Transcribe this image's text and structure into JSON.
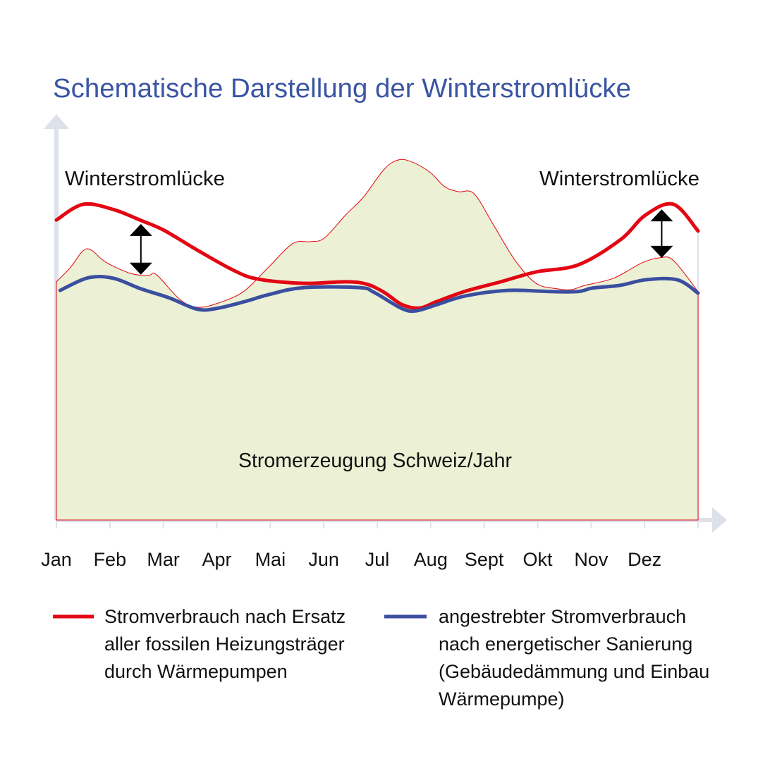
{
  "chart_data": {
    "type": "area",
    "title": "Schematische Darstellung der Winterstromlücke",
    "categories": [
      "Jan",
      "Feb",
      "Mar",
      "Apr",
      "Mai",
      "Jun",
      "Jul",
      "Aug",
      "Sept",
      "Okt",
      "Nov",
      "Dez"
    ],
    "xlabel": "",
    "ylabel": "",
    "xlim": [
      0,
      12
    ],
    "ylim": [
      0,
      100
    ],
    "grid": false,
    "legend_position": "bottom",
    "area": {
      "label": "Stromerzeugung Schweiz/Jahr",
      "fill": "#ecf0d4",
      "stroke": "#e30613",
      "points": [
        [
          0,
          60.6
        ],
        [
          0.26,
          64.2
        ],
        [
          0.5,
          68.5
        ],
        [
          0.66,
          68.6
        ],
        [
          0.92,
          65.6
        ],
        [
          1.39,
          62.7
        ],
        [
          1.72,
          62.2
        ],
        [
          1.87,
          62.4
        ],
        [
          2.31,
          56.1
        ],
        [
          2.64,
          54.1
        ],
        [
          3.03,
          55.2
        ],
        [
          3.5,
          58.1
        ],
        [
          3.96,
          64.2
        ],
        [
          4.42,
          70.3
        ],
        [
          4.75,
          70.8
        ],
        [
          5.01,
          71.7
        ],
        [
          5.41,
          77.6
        ],
        [
          5.74,
          82.1
        ],
        [
          6.13,
          89.2
        ],
        [
          6.4,
          91.6
        ],
        [
          6.66,
          91.0
        ],
        [
          6.99,
          88.4
        ],
        [
          7.26,
          84.8
        ],
        [
          7.52,
          83.5
        ],
        [
          7.81,
          83.0
        ],
        [
          8.18,
          74.9
        ],
        [
          8.58,
          66.0
        ],
        [
          8.97,
          60.2
        ],
        [
          9.37,
          58.8
        ],
        [
          9.63,
          58.6
        ],
        [
          9.89,
          59.7
        ],
        [
          10.42,
          61.5
        ],
        [
          10.95,
          65.4
        ],
        [
          11.28,
          66.7
        ],
        [
          11.54,
          66.0
        ],
        [
          12,
          58.1
        ]
      ]
    },
    "series": [
      {
        "name": "Stromverbrauch nach Ersatz aller fossilen Heizungsträger durch Wärmepumpen",
        "color": "#e30613",
        "points": [
          [
            0,
            76.3
          ],
          [
            0.5,
            80.3
          ],
          [
            1.06,
            79.0
          ],
          [
            1.58,
            76.2
          ],
          [
            2.01,
            73.7
          ],
          [
            2.64,
            68.6
          ],
          [
            3.3,
            63.6
          ],
          [
            3.76,
            61.3
          ],
          [
            4.62,
            60.2
          ],
          [
            5.41,
            60.6
          ],
          [
            5.8,
            60.0
          ],
          [
            6.13,
            57.9
          ],
          [
            6.46,
            54.8
          ],
          [
            6.79,
            53.9
          ],
          [
            7.12,
            55.6
          ],
          [
            7.65,
            58.2
          ],
          [
            8.31,
            60.6
          ],
          [
            8.97,
            63.1
          ],
          [
            9.76,
            64.9
          ],
          [
            10.55,
            71.3
          ],
          [
            11.02,
            77.6
          ],
          [
            11.54,
            80.3
          ],
          [
            12,
            73.5
          ]
        ]
      },
      {
        "name": "angestrebter Stromverbrauch nach energetischer Sanierung (Gebäudedämmung und Einbau Wärmepumpe)",
        "color": "#3a4fa0",
        "points": [
          [
            0.07,
            58.4
          ],
          [
            0.59,
            61.6
          ],
          [
            1.06,
            61.5
          ],
          [
            1.58,
            58.8
          ],
          [
            2.11,
            56.5
          ],
          [
            2.64,
            53.6
          ],
          [
            3.03,
            53.9
          ],
          [
            3.56,
            55.7
          ],
          [
            3.96,
            57.3
          ],
          [
            4.62,
            59.1
          ],
          [
            5.67,
            59.1
          ],
          [
            5.94,
            57.9
          ],
          [
            6.46,
            53.8
          ],
          [
            6.73,
            53.2
          ],
          [
            7.12,
            54.8
          ],
          [
            7.65,
            57.0
          ],
          [
            8.44,
            58.4
          ],
          [
            9.23,
            58.1
          ],
          [
            9.76,
            58.1
          ],
          [
            10.03,
            59.0
          ],
          [
            10.55,
            59.7
          ],
          [
            11.02,
            61.1
          ],
          [
            11.61,
            61.1
          ],
          [
            12,
            57.7
          ]
        ]
      }
    ],
    "annotations": [
      {
        "text": "Winterstromlücke",
        "arrow_month": 1.58,
        "arrow_from": 75.3,
        "arrow_to": 62.4
      },
      {
        "text": "Winterstromlücke",
        "arrow_month": 11.32,
        "arrow_from": 79.0,
        "arrow_to": 66.7
      }
    ],
    "legend": {
      "red_lines": [
        "Stromverbrauch nach Ersatz",
        "aller fossilen Heizungsträger",
        "durch Wärmepumpen"
      ],
      "blue_lines": [
        "angestrebter Stromverbrauch",
        "nach energetischer Sanierung",
        "(Gebäudedämmung und Einbau",
        "Wärmepumpe)"
      ]
    },
    "axis_color": "#dde2ea"
  }
}
